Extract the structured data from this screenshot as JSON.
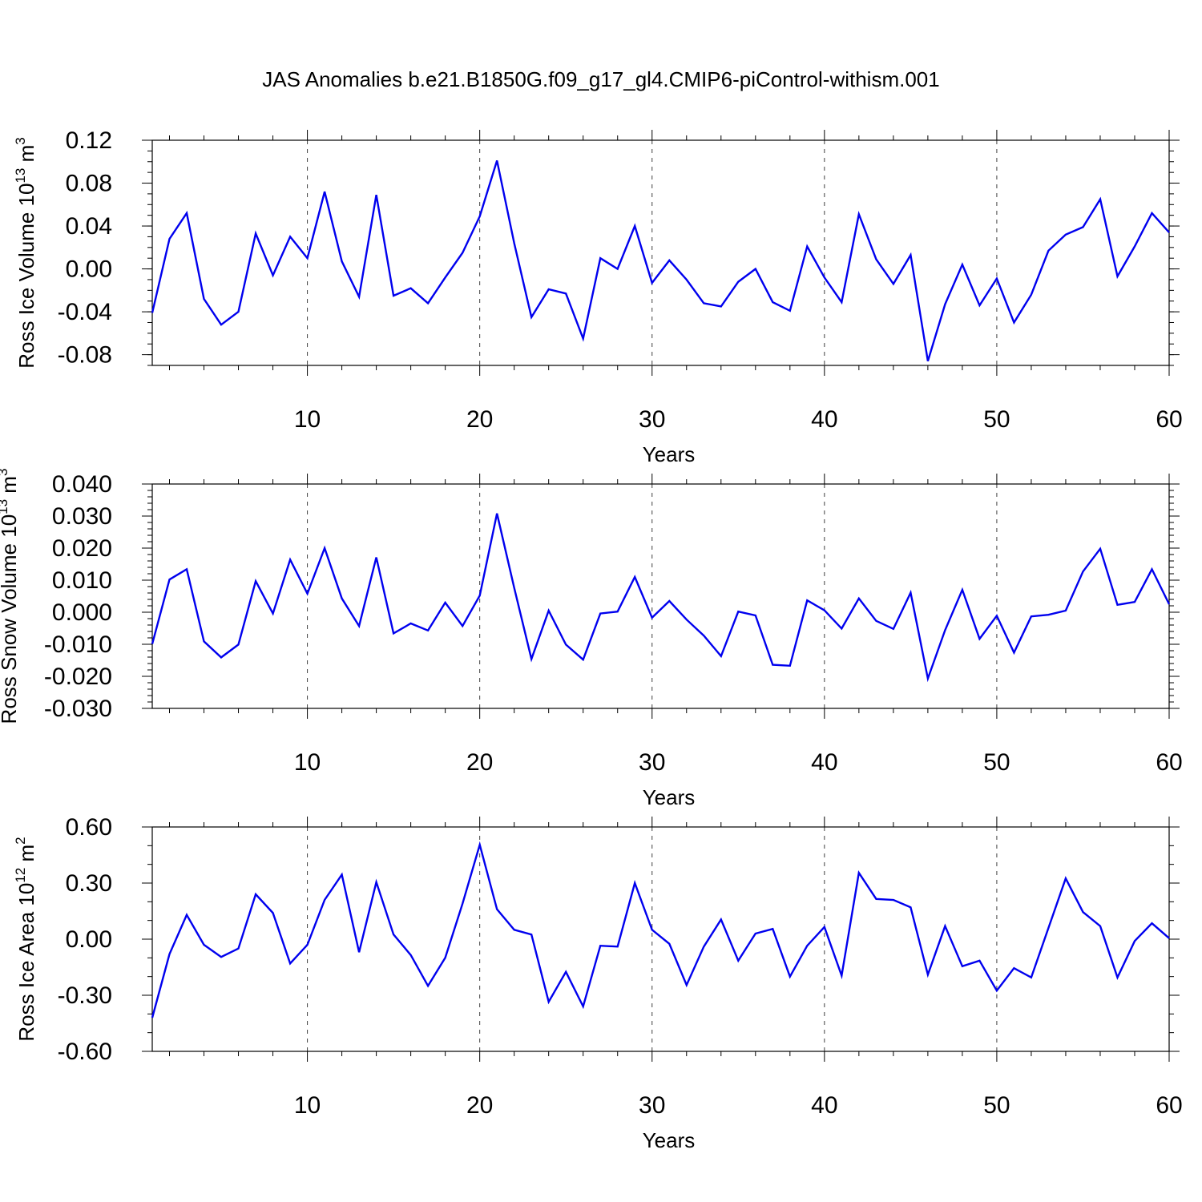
{
  "figure_title": "JAS Anomalies b.e21.B1850G.f09_g17_gl4.CMIP6-piControl-withism.001",
  "line_color": "#0000ee",
  "chart_data": [
    {
      "type": "line",
      "ylabel_main": "Ross Ice Volume 10",
      "ylabel_exp": "13",
      "ylabel_unit": "m",
      "ylabel_unit_exp": "3",
      "xlabel": "Years",
      "xlim": [
        1,
        60
      ],
      "ylim": [
        -0.09,
        0.12
      ],
      "yticks": [
        -0.08,
        -0.04,
        0.0,
        0.04,
        0.08,
        0.12
      ],
      "ytick_labels": [
        "-0.08",
        "-0.04",
        "0.00",
        "0.04",
        "0.08",
        "0.12"
      ],
      "yminor_step": 0.01,
      "xticks": [
        10,
        20,
        30,
        40,
        50,
        60
      ],
      "xtick_labels": [
        "10",
        "20",
        "30",
        "40",
        "50",
        "60"
      ],
      "grid_x": [
        10,
        20,
        30,
        40,
        50
      ],
      "x": [
        1,
        2,
        3,
        4,
        5,
        6,
        7,
        8,
        9,
        10,
        11,
        12,
        13,
        14,
        15,
        16,
        17,
        18,
        19,
        20,
        21,
        22,
        23,
        24,
        25,
        26,
        27,
        28,
        29,
        30,
        31,
        32,
        33,
        34,
        35,
        36,
        37,
        38,
        39,
        40,
        41,
        42,
        43,
        44,
        45,
        46,
        47,
        48,
        49,
        50,
        51,
        52,
        53,
        54,
        55,
        56,
        57,
        58,
        59,
        60
      ],
      "values": [
        -0.041,
        0.028,
        0.052,
        -0.028,
        -0.052,
        -0.04,
        0.033,
        -0.006,
        0.03,
        0.01,
        0.072,
        0.007,
        -0.026,
        0.069,
        -0.025,
        -0.018,
        -0.032,
        -0.008,
        0.015,
        0.049,
        0.101,
        0.024,
        -0.045,
        -0.019,
        -0.023,
        -0.065,
        0.01,
        0.0,
        0.04,
        -0.013,
        0.008,
        -0.01,
        -0.032,
        -0.035,
        -0.012,
        0.0,
        -0.031,
        -0.039,
        0.021,
        -0.008,
        -0.031,
        0.051,
        0.009,
        -0.014,
        0.013,
        -0.086,
        -0.033,
        0.004,
        -0.034,
        -0.009,
        -0.05,
        -0.024,
        0.017,
        0.032,
        0.039,
        0.065,
        -0.007,
        0.021,
        0.052,
        0.034
      ]
    },
    {
      "type": "line",
      "ylabel_main": "Ross Snow Volume 10",
      "ylabel_exp": "13",
      "ylabel_unit": "m",
      "ylabel_unit_exp": "3",
      "xlabel": "Years",
      "xlim": [
        1,
        60
      ],
      "ylim": [
        -0.03,
        0.04
      ],
      "yticks": [
        -0.03,
        -0.02,
        -0.01,
        0.0,
        0.01,
        0.02,
        0.03,
        0.04
      ],
      "ytick_labels": [
        "-0.030",
        "-0.020",
        "-0.010",
        "0.000",
        "0.010",
        "0.020",
        "0.030",
        "0.040"
      ],
      "yminor_step": 0.002,
      "xticks": [
        10,
        20,
        30,
        40,
        50,
        60
      ],
      "xtick_labels": [
        "10",
        "20",
        "30",
        "40",
        "50",
        "60"
      ],
      "grid_x": [
        10,
        20,
        30,
        40,
        50
      ],
      "x": [
        1,
        2,
        3,
        4,
        5,
        6,
        7,
        8,
        9,
        10,
        11,
        12,
        13,
        14,
        15,
        16,
        17,
        18,
        19,
        20,
        21,
        22,
        23,
        24,
        25,
        26,
        27,
        28,
        29,
        30,
        31,
        32,
        33,
        34,
        35,
        36,
        37,
        38,
        39,
        40,
        41,
        42,
        43,
        44,
        45,
        46,
        47,
        48,
        49,
        50,
        51,
        52,
        53,
        54,
        55,
        56,
        57,
        58,
        59,
        60
      ],
      "values": [
        -0.0099,
        0.0102,
        0.0134,
        -0.0091,
        -0.0141,
        -0.0101,
        0.0097,
        -0.0004,
        0.0164,
        0.0058,
        0.02,
        0.0043,
        -0.0043,
        0.0171,
        -0.0066,
        -0.0035,
        -0.0057,
        0.003,
        -0.0043,
        0.0052,
        0.0308,
        0.0076,
        -0.0146,
        0.0005,
        -0.0101,
        -0.0148,
        -0.0004,
        0.0002,
        0.011,
        -0.0017,
        0.0035,
        -0.0023,
        -0.0073,
        -0.0137,
        0.0002,
        -0.001,
        -0.0164,
        -0.0167,
        0.0037,
        0.0006,
        -0.0051,
        0.0043,
        -0.0027,
        -0.0052,
        0.0061,
        -0.0207,
        -0.0056,
        0.007,
        -0.0083,
        -0.0011,
        -0.0126,
        -0.0013,
        -0.0008,
        0.0005,
        0.0127,
        0.0198,
        0.0023,
        0.0032,
        0.0134,
        0.0025
      ]
    },
    {
      "type": "line",
      "ylabel_main": "Ross Ice Area 10",
      "ylabel_exp": "12",
      "ylabel_unit": "m",
      "ylabel_unit_exp": "2",
      "xlabel": "Years",
      "xlim": [
        1,
        60
      ],
      "ylim": [
        -0.6,
        0.6
      ],
      "yticks": [
        -0.6,
        -0.3,
        0.0,
        0.3,
        0.6
      ],
      "ytick_labels": [
        "-0.60",
        "-0.30",
        "0.00",
        "0.30",
        "0.60"
      ],
      "yminor_step": 0.1,
      "xticks": [
        10,
        20,
        30,
        40,
        50,
        60
      ],
      "xtick_labels": [
        "10",
        "20",
        "30",
        "40",
        "50",
        "60"
      ],
      "grid_x": [
        10,
        20,
        30,
        40,
        50
      ],
      "x": [
        1,
        2,
        3,
        4,
        5,
        6,
        7,
        8,
        9,
        10,
        11,
        12,
        13,
        14,
        15,
        16,
        17,
        18,
        19,
        20,
        21,
        22,
        23,
        24,
        25,
        26,
        27,
        28,
        29,
        30,
        31,
        32,
        33,
        34,
        35,
        36,
        37,
        38,
        39,
        40,
        41,
        42,
        43,
        44,
        45,
        46,
        47,
        48,
        49,
        50,
        51,
        52,
        53,
        54,
        55,
        56,
        57,
        58,
        59,
        60
      ],
      "values": [
        -0.42,
        -0.08,
        0.13,
        -0.03,
        -0.095,
        -0.05,
        0.24,
        0.14,
        -0.13,
        -0.03,
        0.21,
        0.345,
        -0.07,
        0.305,
        0.025,
        -0.085,
        -0.25,
        -0.1,
        0.19,
        0.505,
        0.16,
        0.05,
        0.025,
        -0.335,
        -0.175,
        -0.36,
        -0.035,
        -0.04,
        0.3,
        0.05,
        -0.025,
        -0.245,
        -0.04,
        0.105,
        -0.115,
        0.03,
        0.055,
        -0.2,
        -0.035,
        0.065,
        -0.195,
        0.355,
        0.215,
        0.21,
        0.17,
        -0.19,
        0.07,
        -0.145,
        -0.115,
        -0.275,
        -0.155,
        -0.205,
        0.06,
        0.325,
        0.145,
        0.07,
        -0.205,
        -0.01,
        0.085,
        0.005
      ]
    }
  ]
}
